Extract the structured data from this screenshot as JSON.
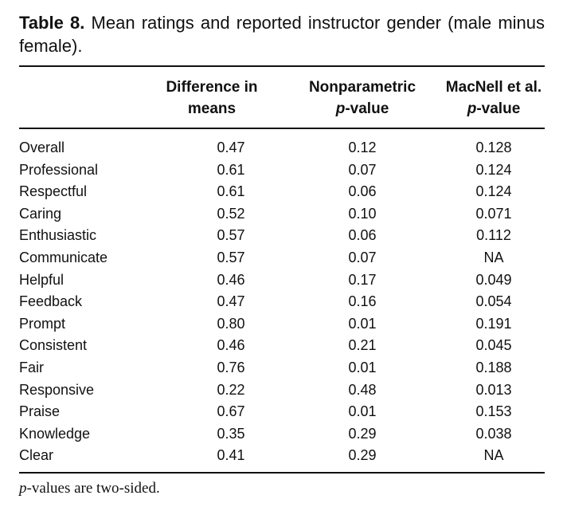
{
  "caption": {
    "label": "Table 8.",
    "text": "Mean ratings and reported instructor gender (male minus female)."
  },
  "columns": [
    {
      "line1": "Difference in",
      "line2": "means"
    },
    {
      "line1": "Nonparametric",
      "line2_italic": "p",
      "line2": "-value"
    },
    {
      "line1": "MacNell et al.",
      "line2_italic": "p",
      "line2": "-value"
    }
  ],
  "rows": [
    {
      "name": "Overall",
      "diff": "0.47",
      "np": "0.12",
      "mac": "0.128"
    },
    {
      "name": "Professional",
      "diff": "0.61",
      "np": "0.07",
      "mac": "0.124"
    },
    {
      "name": "Respectful",
      "diff": "0.61",
      "np": "0.06",
      "mac": "0.124"
    },
    {
      "name": "Caring",
      "diff": "0.52",
      "np": "0.10",
      "mac": "0.071"
    },
    {
      "name": "Enthusiastic",
      "diff": "0.57",
      "np": "0.06",
      "mac": "0.112"
    },
    {
      "name": "Communicate",
      "diff": "0.57",
      "np": "0.07",
      "mac": "NA"
    },
    {
      "name": "Helpful",
      "diff": "0.46",
      "np": "0.17",
      "mac": "0.049"
    },
    {
      "name": "Feedback",
      "diff": "0.47",
      "np": "0.16",
      "mac": "0.054"
    },
    {
      "name": "Prompt",
      "diff": "0.80",
      "np": "0.01",
      "mac": "0.191"
    },
    {
      "name": "Consistent",
      "diff": "0.46",
      "np": "0.21",
      "mac": "0.045"
    },
    {
      "name": "Fair",
      "diff": "0.76",
      "np": "0.01",
      "mac": "0.188"
    },
    {
      "name": "Responsive",
      "diff": "0.22",
      "np": "0.48",
      "mac": "0.013"
    },
    {
      "name": "Praise",
      "diff": "0.67",
      "np": "0.01",
      "mac": "0.153"
    },
    {
      "name": "Knowledge",
      "diff": "0.35",
      "np": "0.29",
      "mac": "0.038"
    },
    {
      "name": "Clear",
      "diff": "0.41",
      "np": "0.29",
      "mac": "NA"
    }
  ],
  "footnote": {
    "italic": "p",
    "text": "-values are two-sided."
  }
}
